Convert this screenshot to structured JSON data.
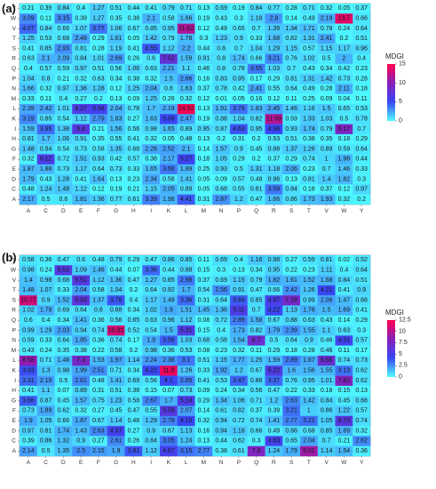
{
  "chart_data": [
    {
      "type": "heatmap",
      "panel_label": "(a)",
      "legend_title": "MDGI",
      "colorbar_ticks": [
        0,
        5,
        10,
        15
      ],
      "vmin": 0,
      "vmax": 15,
      "color_stops": [
        "#4dfcff",
        "#3a46f5",
        "#8a1fb8",
        "#ff004c"
      ],
      "x_labels": [
        "A",
        "C",
        "D",
        "E",
        "F",
        "G",
        "H",
        "I",
        "K",
        "L",
        "M",
        "N",
        "P",
        "Q",
        "R",
        "S",
        "T",
        "V",
        "W",
        "Y"
      ],
      "y_labels": [
        "Y",
        "W",
        "V",
        "T",
        "S",
        "R",
        "Q",
        "P",
        "N",
        "M",
        "L",
        "K",
        "I",
        "H",
        "G",
        "F",
        "E",
        "D",
        "C",
        "A"
      ],
      "values": [
        [
          0.21,
          0.39,
          0.84,
          0.4,
          1.27,
          0.51,
          0.44,
          0.41,
          0.79,
          0.71,
          0.13,
          0.69,
          0.19,
          0.84,
          0.77,
          0.28,
          0.71,
          0.32,
          0.05,
          0.37
        ],
        [
          3.09,
          0.11,
          3.15,
          0.39,
          1.27,
          0.35,
          0.38,
          2.1,
          0.58,
          1.66,
          0.19,
          0.43,
          0.3,
          1.18,
          2.8,
          0.14,
          0.49,
          2.19,
          13.7,
          0.66
        ],
        [
          4.07,
          0.84,
          0.66,
          1.07,
          3.77,
          1.06,
          0.67,
          0.85,
          0.95,
          11.62,
          0.12,
          0.49,
          0.65,
          0.7,
          1.39,
          1.34,
          1.71,
          0.78,
          0.24,
          0.64
        ],
        [
          1.25,
          0.53,
          0.68,
          2.46,
          0.29,
          1.61,
          0.05,
          1.42,
          0.79,
          1.78,
          0.3,
          1.23,
          0.9,
          0.33,
          1.68,
          0.82,
          1.31,
          2.41,
          0.2,
          0.51
        ],
        [
          0.41,
          0.85,
          2.93,
          0.81,
          0.28,
          1.19,
          0.41,
          4.55,
          1.12,
          2.2,
          0.44,
          0.8,
          0.7,
          1.04,
          1.29,
          1.15,
          0.57,
          1.15,
          1.17,
          0.96
        ],
        [
          0.63,
          2.1,
          2.09,
          0.84,
          1.01,
          2.69,
          0.26,
          0.6,
          7.52,
          1.59,
          0.91,
          0.8,
          1.74,
          0.66,
          3.21,
          0.76,
          1.02,
          0.5,
          2,
          0.4
        ],
        [
          0.4,
          0.57,
          0.59,
          0.97,
          0.51,
          0.56,
          1.06,
          0.63,
          2.21,
          1.1,
          0.46,
          0.8,
          0.78,
          3.55,
          1.03,
          0.7,
          0.43,
          0.34,
          0.42,
          0.23
        ],
        [
          1.04,
          0.8,
          0.21,
          0.32,
          0.63,
          0.34,
          0.38,
          0.32,
          1.5,
          2.66,
          0.16,
          0.83,
          0.95,
          0.17,
          0.29,
          0.81,
          1.31,
          1.42,
          0.73,
          0.28
        ],
        [
          1.66,
          0.32,
          0.97,
          1.36,
          1.28,
          0.12,
          1.25,
          2.04,
          0.8,
          1.63,
          0.37,
          0.78,
          0.42,
          2.41,
          0.55,
          0.64,
          0.49,
          0.28,
          2.11,
          0.18
        ],
        [
          0.33,
          0.11,
          0.4,
          0.27,
          0.2,
          0.13,
          0.09,
          1.25,
          0.26,
          0.32,
          0.12,
          0.01,
          0.05,
          0.16,
          0.12,
          0.11,
          0.25,
          0.09,
          0.04,
          0.11
        ],
        [
          2.39,
          2.42,
          1.01,
          6.27,
          5.58,
          2.04,
          0.78,
          1.7,
          2.19,
          14.52,
          0.13,
          1.91,
          3.79,
          1.83,
          2.45,
          1.46,
          1.16,
          1.5,
          0.65,
          0.53
        ],
        [
          3.19,
          0.85,
          0.54,
          1.12,
          2.79,
          1.83,
          0.27,
          1.63,
          5.09,
          2.47,
          0.19,
          0.88,
          1.04,
          0.82,
          11.69,
          0.59,
          1.33,
          1.03,
          0.5,
          0.78
        ],
        [
          1.59,
          3.95,
          1.38,
          6.8,
          0.21,
          1.56,
          0.56,
          0.98,
          1.65,
          0.89,
          0.95,
          0.87,
          4.63,
          0.95,
          4.98,
          0.93,
          1.74,
          0.79,
          9.17,
          0.7
        ],
        [
          0.81,
          1.7,
          1.06,
          0.91,
          0.35,
          0.55,
          0.41,
          0.32,
          0.05,
          0.48,
          0.13,
          0.2,
          0.31,
          0.2,
          0.53,
          0.51,
          0.38,
          0.35,
          0.18,
          0.29
        ],
        [
          1.48,
          0.94,
          0.54,
          0.73,
          0.58,
          1.35,
          0.68,
          2.26,
          2.52,
          2.1,
          0.14,
          1.57,
          0.9,
          0.45,
          0.88,
          1.37,
          1.26,
          0.89,
          0.59,
          0.64
        ],
        [
          0.32,
          6.12,
          0.72,
          1.51,
          0.93,
          0.42,
          0.57,
          0.38,
          2.17,
          5.27,
          0.18,
          1.05,
          0.29,
          0.2,
          0.37,
          0.29,
          0.74,
          1,
          1.98,
          0.44
        ],
        [
          1.87,
          1.88,
          0.73,
          1.17,
          0.64,
          0.73,
          0.33,
          1.65,
          3.56,
          1.89,
          0.25,
          0.93,
          0.5,
          1.31,
          1.18,
          2.06,
          0.23,
          0.7,
          1.46,
          0.33
        ],
        [
          1.79,
          0.43,
          1.28,
          0.41,
          1.64,
          0.13,
          0.23,
          2.34,
          0.58,
          1.41,
          0.05,
          0.09,
          0.57,
          0.48,
          0.96,
          0.13,
          0.81,
          1.4,
          1.82,
          0.3
        ],
        [
          0.48,
          1.24,
          1.48,
          1.12,
          0.12,
          0.19,
          0.21,
          1.15,
          2.05,
          0.89,
          0.05,
          0.68,
          0.55,
          0.81,
          3.59,
          0.84,
          0.18,
          0.37,
          0.12,
          0.97
        ],
        [
          2.17,
          0.5,
          0.6,
          1.81,
          1.36,
          0.77,
          0.61,
          3.39,
          1.98,
          4.41,
          0.31,
          2.87,
          1.2,
          0.47,
          1.66,
          0.86,
          1.73,
          1.93,
          0.32,
          0.2
        ]
      ]
    },
    {
      "type": "heatmap",
      "panel_label": "(b)",
      "legend_title": "MDGI",
      "colorbar_ticks": [
        0,
        2.5,
        5.0,
        7.5,
        10.0,
        12.5
      ],
      "vmin": 0,
      "vmax": 12.5,
      "color_stops": [
        "#4dfcff",
        "#3a46f5",
        "#8a1fb8",
        "#ff004c"
      ],
      "x_labels": [
        "A",
        "C",
        "D",
        "E",
        "F",
        "G",
        "H",
        "I",
        "K",
        "L",
        "M",
        "N",
        "P",
        "Q",
        "R",
        "S",
        "T",
        "V",
        "W",
        "Y"
      ],
      "y_labels": [
        "Y",
        "W",
        "V",
        "T",
        "S",
        "R",
        "Q",
        "P",
        "N",
        "M",
        "L",
        "K",
        "I",
        "H",
        "G",
        "F",
        "E",
        "D",
        "C",
        "A"
      ],
      "values": [
        [
          0.58,
          0.36,
          0.47,
          0.6,
          0.48,
          0.79,
          0.29,
          0.47,
          0.86,
          0.85,
          0.11,
          0.69,
          0.4,
          1.16,
          0.98,
          0.27,
          0.59,
          0.81,
          0.02,
          0.52
        ],
        [
          0.98,
          0.24,
          5.52,
          1.09,
          1.46,
          0.44,
          0.07,
          3.36,
          0.44,
          0.88,
          0.15,
          0.3,
          0.13,
          0.34,
          0.95,
          0.22,
          0.23,
          1.11,
          0.4,
          0.64
        ],
        [
          1.4,
          0.98,
          0.68,
          5.51,
          1.12,
          1.36,
          0.47,
          1.27,
          0.85,
          2.98,
          0.37,
          0.69,
          1.15,
          0.79,
          1.82,
          1.61,
          1.52,
          1.68,
          0.84,
          0.51
        ],
        [
          1.48,
          1.07,
          0.33,
          2.04,
          0.58,
          1.04,
          0.2,
          0.64,
          0.92,
          1.7,
          0.54,
          2.56,
          0.91,
          0.47,
          0.66,
          2.42,
          1.26,
          4.21,
          0.41,
          0.9
        ],
        [
          10.77,
          0.9,
          1.52,
          5.93,
          1.37,
          3.78,
          0.4,
          1.17,
          1.48,
          3.36,
          0.31,
          0.64,
          3.69,
          0.85,
          4.97,
          7.28,
          0.99,
          2.06,
          1.47,
          0.68
        ],
        [
          1.02,
          1.79,
          0.69,
          0.64,
          0.8,
          0.88,
          0.34,
          1.02,
          1.9,
          1.51,
          1.45,
          1.36,
          5.11,
          0.7,
          4.22,
          1.13,
          1.76,
          1.5,
          1.69,
          0.41
        ],
        [
          0.6,
          0.4,
          0.34,
          1.41,
          0.36,
          0.58,
          0.65,
          0.63,
          0.96,
          1.12,
          0.08,
          0.72,
          2.89,
          1.58,
          0.67,
          0.88,
          0.63,
          0.43,
          0.14,
          0.29
        ],
        [
          0.99,
          1.29,
          2.03,
          0.94,
          0.74,
          10.91,
          0.52,
          0.54,
          1.5,
          5.31,
          0.15,
          0.4,
          1.73,
          0.82,
          1.79,
          2.39,
          1.55,
          1.1,
          0.63,
          0.3
        ],
        [
          0.59,
          0.33,
          0.64,
          1.85,
          0.36,
          0.74,
          0.17,
          1.9,
          3.56,
          1.03,
          0.68,
          0.58,
          1.54,
          6.7,
          0.5,
          0.64,
          0.9,
          0.46,
          4.51,
          0.57
        ],
        [
          0.43,
          0.24,
          0.35,
          0.38,
          0.22,
          0.58,
          0.2,
          0.98,
          0.36,
          0.53,
          0.08,
          0.23,
          0.32,
          0.11,
          0.29,
          0.18,
          0.28,
          0.46,
          0.11,
          0.17
        ],
        [
          8.58,
          0.71,
          1.48,
          7.3,
          1.53,
          1.97,
          1.14,
          2.24,
          2.38,
          3.1,
          0.51,
          1.15,
          1.77,
          1.25,
          1.59,
          2.89,
          1.87,
          6.66,
          0.74,
          0.73
        ],
        [
          3.93,
          1.3,
          0.98,
          1.99,
          2.51,
          0.71,
          0.34,
          4.22,
          11.8,
          1.26,
          0.33,
          1.92,
          1.2,
          0.67,
          5.22,
          1.6,
          1.56,
          1.55,
          3.13,
          0.62
        ],
        [
          3.31,
          2.19,
          0.5,
          2.61,
          0.48,
          1.41,
          0.69,
          0.56,
          4.1,
          2.85,
          0.41,
          0.53,
          3.47,
          0.86,
          3.37,
          0.76,
          0.95,
          1.01,
          7.82,
          0.62
        ],
        [
          0.41,
          1.1,
          0.07,
          0.89,
          0.31,
          0.51,
          0.38,
          0.15,
          0.07,
          0.73,
          0.09,
          0.24,
          0.34,
          0.56,
          0.47,
          0.22,
          0.33,
          0.18,
          0.15,
          0.13
        ],
        [
          3.66,
          0.87,
          0.45,
          1.57,
          0.75,
          1.23,
          0.58,
          2.67,
          1.7,
          5.14,
          0.29,
          1.34,
          1.06,
          0.71,
          1.2,
          2.63,
          1.42,
          0.84,
          0.45,
          0.66
        ],
        [
          0.73,
          1.89,
          0.62,
          0.32,
          0.27,
          0.45,
          0.47,
          0.55,
          5.59,
          2.07,
          0.14,
          0.61,
          0.82,
          0.37,
          0.39,
          3.21,
          1,
          0.86,
          1.22,
          0.57
        ],
        [
          1.9,
          1.05,
          0.66,
          1.87,
          0.67,
          1.14,
          0.48,
          1.29,
          2.78,
          4.15,
          0.32,
          0.94,
          0.72,
          0.74,
          1.41,
          2.77,
          3.22,
          1.05,
          5.73,
          0.74
        ],
        [
          0.97,
          0.81,
          1.74,
          1.43,
          2.63,
          4.57,
          0.27,
          0.9,
          0.67,
          1.13,
          0.16,
          0.94,
          1.18,
          0.66,
          0.49,
          0.88,
          0.68,
          0.85,
          1.69,
          0.32
        ],
        [
          0.39,
          0.86,
          1.32,
          0.9,
          0.27,
          2.61,
          0.26,
          0.84,
          3.05,
          1.24,
          0.13,
          0.44,
          0.62,
          0.3,
          4.63,
          0.65,
          2.04,
          0.7,
          0.21,
          2.62
        ],
        [
          2.14,
          0.5,
          1.35,
          2.5,
          2.15,
          1.9,
          3.81,
          1.12,
          4.67,
          3.15,
          2.77,
          0.38,
          0.61,
          7.8,
          1.24,
          1.79,
          9.01,
          1.14,
          1.54,
          0.36
        ]
      ]
    }
  ]
}
